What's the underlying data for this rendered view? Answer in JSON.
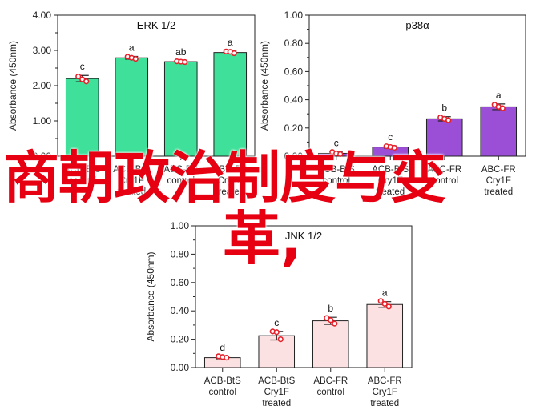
{
  "overlay": {
    "line1": "商朝政治制度与变",
    "line2": "革,"
  },
  "chart_data": [
    {
      "type": "bar",
      "title": "ERK 1/2",
      "ylabel": "Absorbance (450nm)",
      "ylim": [
        0,
        4.0
      ],
      "yticks": [
        "0.00",
        "1.00",
        "2.00",
        "3.00",
        "4.00"
      ],
      "categories": [
        "ACB-BtS\ncontrol",
        "ACB-BtS\nCry1F\ntreated",
        "ABC-FR\ncontrol",
        "ABC-FR\nCry1F\ntreated"
      ],
      "values": [
        2.2,
        2.79,
        2.68,
        2.94
      ],
      "errors": [
        0.09,
        0.04,
        0.02,
        0.04
      ],
      "points": [
        [
          2.26,
          2.18,
          2.12
        ],
        [
          2.82,
          2.79,
          2.76
        ],
        [
          2.69,
          2.68,
          2.67
        ],
        [
          2.97,
          2.96,
          2.92
        ]
      ],
      "labels": [
        "c",
        "a",
        "ab",
        "a"
      ],
      "bar_color": "#3ee09a"
    },
    {
      "type": "bar",
      "title": "p38α",
      "ylabel": "Absorbance (450nm)",
      "ylim": [
        0,
        1.0
      ],
      "yticks": [
        "0.00",
        "0.20",
        "0.40",
        "0.60",
        "0.80",
        "1.00"
      ],
      "categories": [
        "ACB-BtS\ncontrol",
        "ACB-BtS\nCry1F\ntreated",
        "ABC-FR\ncontrol",
        "ABC-FR\nCry1F\ntreated"
      ],
      "values": [
        0.02,
        0.065,
        0.265,
        0.35
      ],
      "errors": [
        0.01,
        0.008,
        0.015,
        0.02
      ],
      "points": [
        [
          0.03,
          0.02,
          0.015
        ],
        [
          0.07,
          0.065,
          0.06
        ],
        [
          0.275,
          0.265,
          0.255
        ],
        [
          0.365,
          0.35,
          0.34
        ]
      ],
      "labels": [
        "c",
        "c",
        "b",
        "a"
      ],
      "bar_color": "#9b4fd6"
    },
    {
      "type": "bar",
      "title": "JNK 1/2",
      "ylabel": "Absorbance (450nm)",
      "ylim": [
        0,
        1.0
      ],
      "yticks": [
        "0.00",
        "0.20",
        "0.40",
        "0.60",
        "0.80",
        "1.00"
      ],
      "categories": [
        "ACB-BtS\ncontrol",
        "ACB-BtS\nCry1F\ntreated",
        "ABC-FR\ncontrol",
        "ABC-FR\nCry1F\ntreated"
      ],
      "values": [
        0.07,
        0.225,
        0.33,
        0.445
      ],
      "errors": [
        0.008,
        0.03,
        0.025,
        0.02
      ],
      "points": [
        [
          0.08,
          0.075,
          0.07
        ],
        [
          0.255,
          0.25,
          0.2
        ],
        [
          0.35,
          0.335,
          0.31
        ],
        [
          0.47,
          0.45,
          0.43
        ]
      ],
      "labels": [
        "d",
        "c",
        "b",
        "a"
      ],
      "bar_color": "#fbe1e1"
    }
  ]
}
